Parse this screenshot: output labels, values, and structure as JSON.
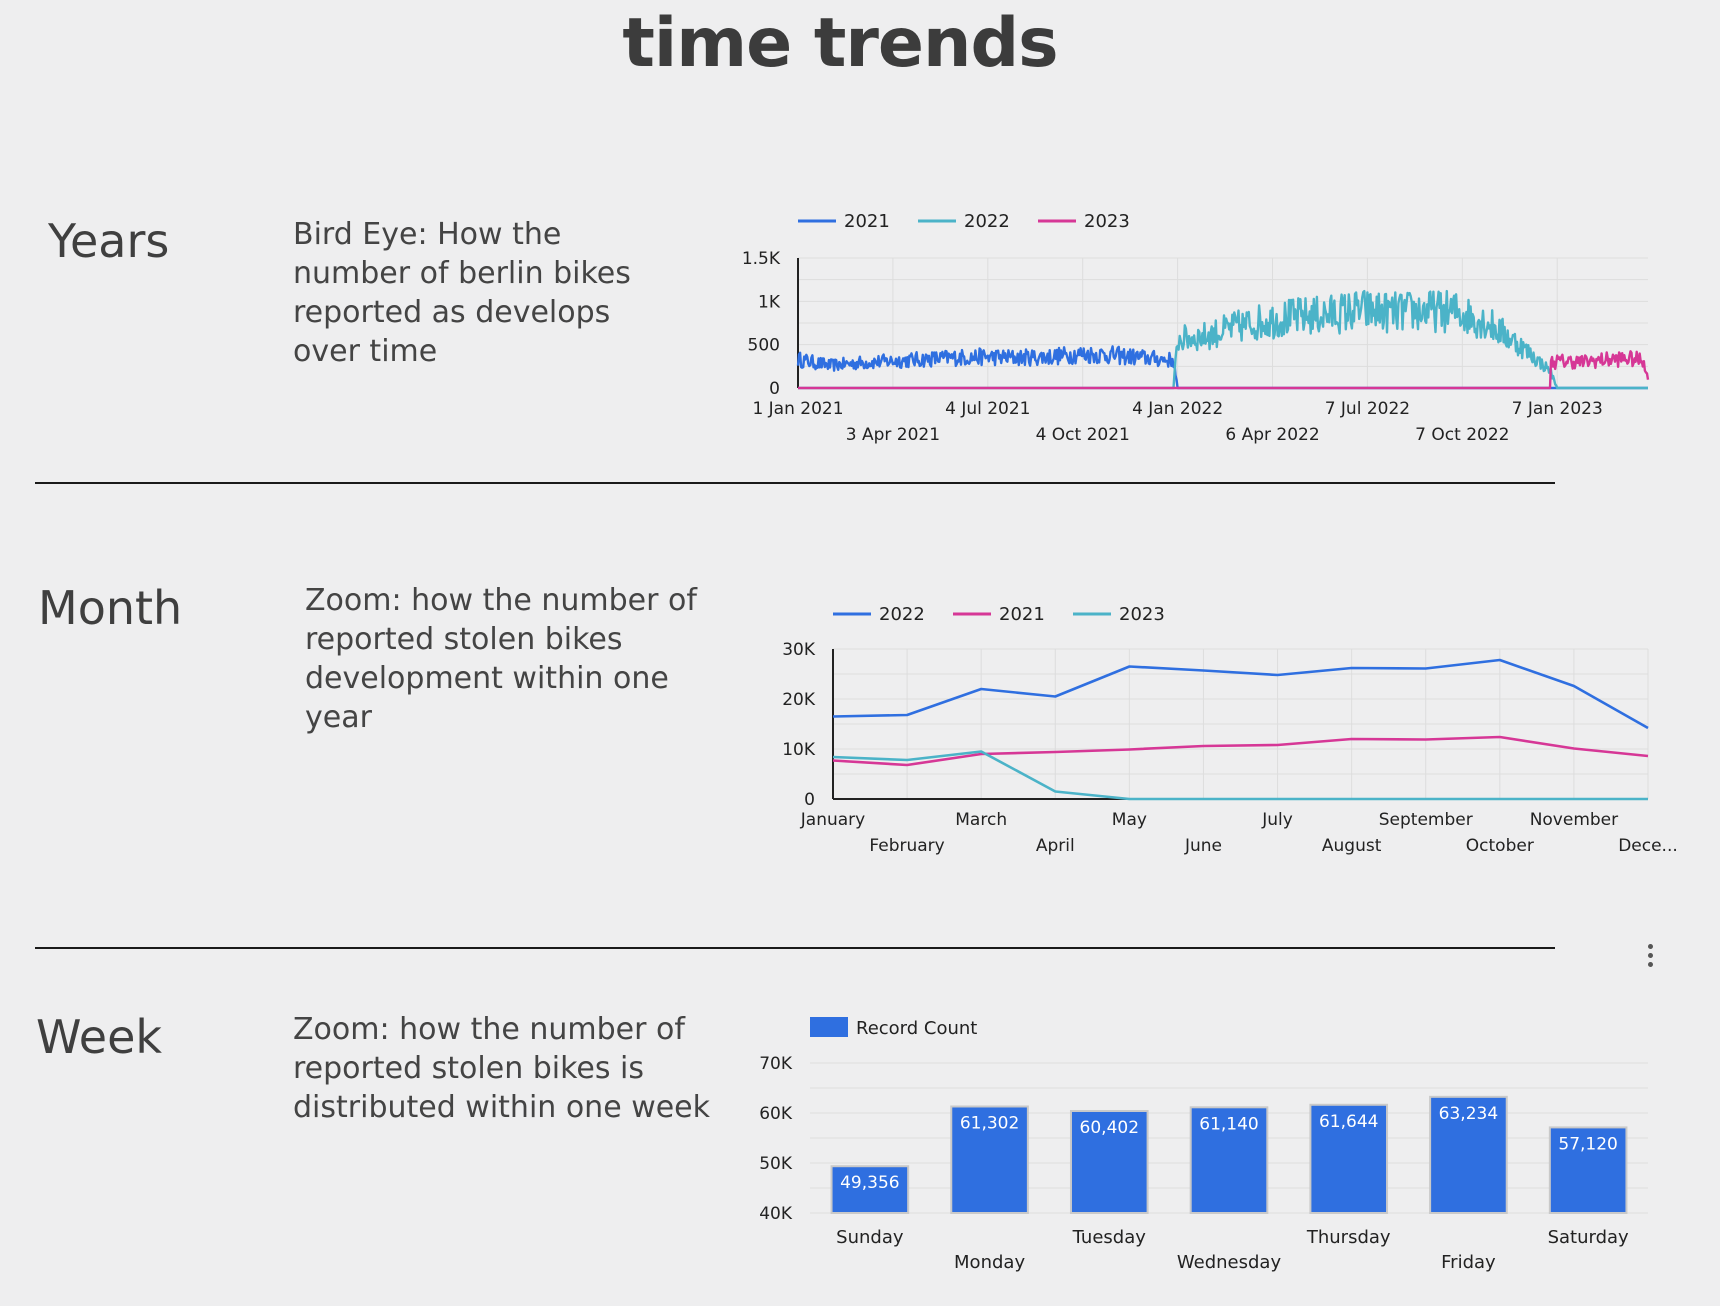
{
  "title": "time trends",
  "sections": [
    {
      "label": "Years",
      "description": "Bird Eye: How the number of berlin bikes reported as develops over time"
    },
    {
      "label": "Month",
      "description": "Zoom: how the number of reported stolen bikes development within one year"
    },
    {
      "label": "Week",
      "description": "Zoom: how the number of reported stolen bikes is distributed within one week"
    }
  ],
  "menu_icon": "more-vertical-icon",
  "colors": {
    "c2021": "#2f6fe0",
    "c2022": "#4bb3c8",
    "c2023": "#d63796",
    "bar": "#2f6fe0",
    "grid": "#dddddd"
  },
  "chart_data": [
    {
      "type": "line",
      "x_type": "date",
      "legend_position": "top-left",
      "legend": [
        "2021",
        "2022",
        "2023"
      ],
      "ylim": [
        0,
        1500
      ],
      "yticks": [
        0,
        500,
        1000,
        1500
      ],
      "ytick_labels": [
        "0",
        "500",
        "1K",
        "1.5K"
      ],
      "xlim": [
        "2021-01-01",
        "2023-04-05"
      ],
      "xticks": [
        "2021-01-01",
        "2021-04-03",
        "2021-07-04",
        "2021-10-04",
        "2022-01-04",
        "2022-04-06",
        "2022-07-07",
        "2022-10-07",
        "2023-01-07"
      ],
      "xtick_labels": [
        "1 Jan 2021",
        "3 Apr 2021",
        "4 Jul 2021",
        "4 Oct 2021",
        "4 Jan 2022",
        "6 Apr 2022",
        "7 Jul 2022",
        "7 Oct 2022",
        "7 Jan 2023"
      ],
      "grid": true,
      "series": [
        {
          "name": "2021",
          "color_key": "c2021",
          "x": [
            "2021-01-01",
            "2021-02-01",
            "2021-03-01",
            "2021-04-01",
            "2021-05-01",
            "2021-06-01",
            "2021-07-01",
            "2021-08-01",
            "2021-09-01",
            "2021-10-01",
            "2021-11-01",
            "2021-12-01",
            "2021-12-31",
            "2022-01-04",
            "2023-04-05"
          ],
          "y": [
            330,
            260,
            290,
            310,
            330,
            350,
            360,
            350,
            360,
            390,
            380,
            350,
            320,
            0,
            0
          ]
        },
        {
          "name": "2022",
          "color_key": "c2022",
          "x": [
            "2021-01-01",
            "2021-12-31",
            "2022-01-04",
            "2022-02-01",
            "2022-03-01",
            "2022-04-01",
            "2022-05-01",
            "2022-06-01",
            "2022-07-01",
            "2022-08-01",
            "2022-09-01",
            "2022-10-01",
            "2022-11-01",
            "2022-12-01",
            "2022-12-31",
            "2023-01-07",
            "2023-04-05"
          ],
          "y": [
            0,
            0,
            560,
            600,
            700,
            780,
            820,
            850,
            900,
            870,
            890,
            880,
            750,
            500,
            200,
            0,
            0
          ]
        },
        {
          "name": "2023",
          "color_key": "c2023",
          "x": [
            "2021-01-01",
            "2022-12-31",
            "2023-01-01",
            "2023-01-15",
            "2023-02-01",
            "2023-02-15",
            "2023-03-01",
            "2023-03-15",
            "2023-04-01",
            "2023-04-05"
          ],
          "y": [
            0,
            0,
            300,
            310,
            300,
            320,
            330,
            340,
            320,
            90
          ]
        }
      ]
    },
    {
      "type": "line",
      "legend_position": "top-left",
      "legend": [
        "2022",
        "2021",
        "2023"
      ],
      "categories": [
        "January",
        "February",
        "March",
        "April",
        "May",
        "June",
        "July",
        "August",
        "September",
        "October",
        "November",
        "Dece..."
      ],
      "ylim": [
        0,
        30000
      ],
      "yticks": [
        0,
        10000,
        20000,
        30000
      ],
      "ytick_labels": [
        "0",
        "10K",
        "20K",
        "30K"
      ],
      "grid": true,
      "series": [
        {
          "name": "2022",
          "color_key": "c2021",
          "values": [
            16500,
            16800,
            22000,
            20500,
            26500,
            25700,
            24800,
            26200,
            26100,
            27800,
            22600,
            14200
          ]
        },
        {
          "name": "2021",
          "color_key": "c2023",
          "values": [
            7700,
            6800,
            9000,
            9400,
            9900,
            10600,
            10800,
            12000,
            11900,
            12400,
            10100,
            8600
          ]
        },
        {
          "name": "2023",
          "color_key": "c2022",
          "values": [
            8400,
            7800,
            9500,
            1500,
            0,
            0,
            0,
            0,
            0,
            0,
            0,
            0
          ]
        }
      ]
    },
    {
      "type": "bar",
      "legend_position": "top-left",
      "legend": [
        "Record Count"
      ],
      "categories": [
        "Sunday",
        "Monday",
        "Tuesday",
        "Wednesday",
        "Thursday",
        "Friday",
        "Saturday"
      ],
      "values": [
        49356,
        61302,
        60402,
        61140,
        61644,
        63234,
        57120
      ],
      "value_labels": [
        "49,356",
        "61,302",
        "60,402",
        "61,140",
        "61,644",
        "63,234",
        "57,120"
      ],
      "ylim": [
        40000,
        70000
      ],
      "yticks": [
        40000,
        50000,
        60000,
        70000
      ],
      "ytick_labels": [
        "40K",
        "50K",
        "60K",
        "70K"
      ],
      "grid": true
    }
  ]
}
